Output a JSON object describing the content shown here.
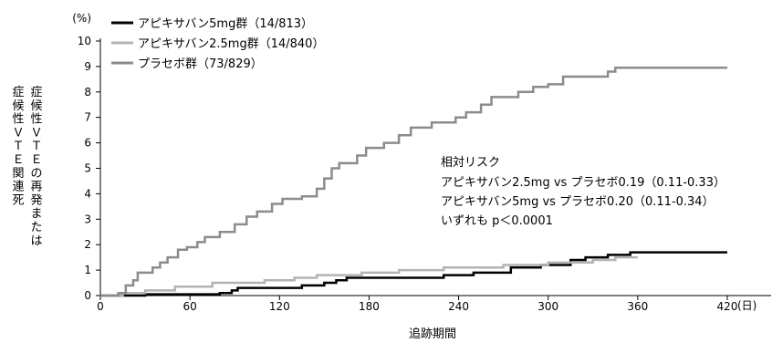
{
  "chart_data": {
    "type": "line",
    "step": true,
    "xlabel": "追跡期間",
    "ylabel_lines": [
      "症候性ＶＴＥの再発または",
      "症候性ＶＴＥ関連死"
    ],
    "yunit": "(%)",
    "xunit": "(日)",
    "xlim": [
      0,
      430
    ],
    "ylim": [
      0,
      10
    ],
    "xticks": [
      0,
      60,
      120,
      180,
      240,
      300,
      360,
      420
    ],
    "yticks": [
      0,
      1,
      2,
      3,
      4,
      5,
      6,
      7,
      8,
      9,
      10
    ],
    "xtick_labels": [
      "0",
      "60",
      "120",
      "180",
      "240",
      "300",
      "360",
      "420"
    ],
    "ytick_labels": [
      "0",
      "1",
      "2",
      "3",
      "4",
      "5",
      "6",
      "7",
      "8",
      "9",
      "10"
    ],
    "grid": false,
    "legend_position": "top-left",
    "series": [
      {
        "name": "アピキサバン5mg群（14/813）",
        "color": "#000000",
        "points": [
          [
            0,
            0
          ],
          [
            30,
            0.05
          ],
          [
            80,
            0.1
          ],
          [
            88,
            0.2
          ],
          [
            92,
            0.3
          ],
          [
            135,
            0.4
          ],
          [
            150,
            0.5
          ],
          [
            158,
            0.6
          ],
          [
            165,
            0.7
          ],
          [
            230,
            0.8
          ],
          [
            250,
            0.9
          ],
          [
            275,
            1.1
          ],
          [
            295,
            1.2
          ],
          [
            315,
            1.4
          ],
          [
            325,
            1.5
          ],
          [
            340,
            1.6
          ],
          [
            355,
            1.7
          ],
          [
            420,
            1.7
          ]
        ]
      },
      {
        "name": "アピキサバン2.5mg群（14/840）",
        "color": "#b3b3b3",
        "points": [
          [
            0,
            0
          ],
          [
            15,
            0.1
          ],
          [
            30,
            0.2
          ],
          [
            50,
            0.35
          ],
          [
            75,
            0.5
          ],
          [
            110,
            0.6
          ],
          [
            130,
            0.7
          ],
          [
            145,
            0.8
          ],
          [
            175,
            0.9
          ],
          [
            200,
            1.0
          ],
          [
            230,
            1.1
          ],
          [
            270,
            1.2
          ],
          [
            300,
            1.3
          ],
          [
            330,
            1.4
          ],
          [
            345,
            1.5
          ],
          [
            360,
            1.5
          ]
        ]
      },
      {
        "name": "プラセボ群（73/829）",
        "color": "#8c8c8c",
        "points": [
          [
            0,
            0
          ],
          [
            12,
            0.1
          ],
          [
            17,
            0.4
          ],
          [
            22,
            0.6
          ],
          [
            25,
            0.9
          ],
          [
            35,
            1.1
          ],
          [
            40,
            1.3
          ],
          [
            45,
            1.5
          ],
          [
            52,
            1.8
          ],
          [
            58,
            1.9
          ],
          [
            65,
            2.1
          ],
          [
            70,
            2.3
          ],
          [
            80,
            2.5
          ],
          [
            90,
            2.8
          ],
          [
            98,
            3.1
          ],
          [
            105,
            3.3
          ],
          [
            115,
            3.6
          ],
          [
            122,
            3.8
          ],
          [
            135,
            3.9
          ],
          [
            145,
            4.2
          ],
          [
            150,
            4.6
          ],
          [
            155,
            5.0
          ],
          [
            160,
            5.2
          ],
          [
            172,
            5.5
          ],
          [
            178,
            5.8
          ],
          [
            190,
            6.0
          ],
          [
            200,
            6.3
          ],
          [
            208,
            6.6
          ],
          [
            222,
            6.8
          ],
          [
            238,
            7.0
          ],
          [
            245,
            7.2
          ],
          [
            255,
            7.5
          ],
          [
            262,
            7.8
          ],
          [
            280,
            8.0
          ],
          [
            290,
            8.2
          ],
          [
            300,
            8.3
          ],
          [
            310,
            8.6
          ],
          [
            340,
            8.8
          ],
          [
            345,
            8.95
          ],
          [
            420,
            8.95
          ]
        ]
      }
    ],
    "annotation": {
      "title": "相対リスク",
      "lines": [
        "アピキサバン2.5mg vs プラセボ0.19（0.11-0.33）",
        "アピキサバン5mg vs プラセボ0.20（0.11-0.34）",
        "いずれも p＜0.0001"
      ]
    }
  }
}
